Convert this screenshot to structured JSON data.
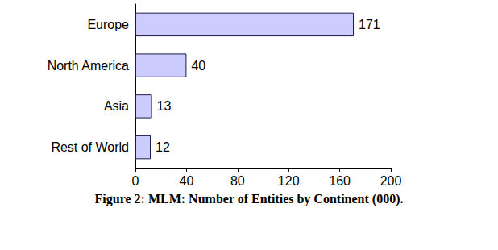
{
  "chart_data": {
    "type": "bar",
    "title": "Figure 2: MLM: Number of Entities by Continent (000).",
    "categories": [
      "Europe",
      "North America",
      "Asia",
      "Rest of World"
    ],
    "values": [
      171,
      40,
      13,
      12
    ],
    "color": "#ccccff",
    "orientation": "horizontal",
    "xlim": [
      0,
      200
    ],
    "xticks": [
      0,
      40,
      80,
      120,
      160,
      200
    ],
    "data_labels": true,
    "grid": false
  }
}
